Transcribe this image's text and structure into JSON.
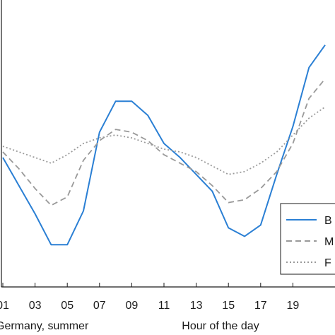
{
  "chart_data": {
    "type": "line",
    "xlabel": "Hour of the day",
    "caption_left": "Germany, summer",
    "x_ticks": [
      "01",
      "03",
      "05",
      "07",
      "09",
      "11",
      "13",
      "15",
      "17",
      "19"
    ],
    "x": [
      1,
      2,
      3,
      4,
      5,
      6,
      7,
      8,
      9,
      10,
      11,
      12,
      13,
      14,
      15,
      16,
      17,
      18,
      19,
      20,
      21
    ],
    "xlim": [
      1,
      21
    ],
    "ylim": [
      0,
      1
    ],
    "grid": false,
    "legend_position": "bottom-right",
    "series": [
      {
        "name": "B",
        "color": "#2a7fd4",
        "dash": "solid",
        "values": [
          0.46,
          0.36,
          0.26,
          0.15,
          0.15,
          0.27,
          0.55,
          0.66,
          0.66,
          0.61,
          0.51,
          0.46,
          0.4,
          0.34,
          0.21,
          0.18,
          0.22,
          0.4,
          0.57,
          0.78,
          0.86
        ]
      },
      {
        "name": "M",
        "color": "#999999",
        "dash": "dashed",
        "values": [
          0.48,
          0.42,
          0.35,
          0.29,
          0.32,
          0.45,
          0.52,
          0.56,
          0.55,
          0.52,
          0.47,
          0.44,
          0.41,
          0.36,
          0.3,
          0.31,
          0.35,
          0.41,
          0.51,
          0.67,
          0.74
        ]
      },
      {
        "name": "F",
        "color": "#9a9a9a",
        "dash": "dotted",
        "values": [
          0.5,
          0.48,
          0.46,
          0.44,
          0.47,
          0.51,
          0.53,
          0.54,
          0.53,
          0.51,
          0.49,
          0.48,
          0.46,
          0.43,
          0.4,
          0.41,
          0.44,
          0.48,
          0.54,
          0.6,
          0.64
        ]
      }
    ]
  }
}
